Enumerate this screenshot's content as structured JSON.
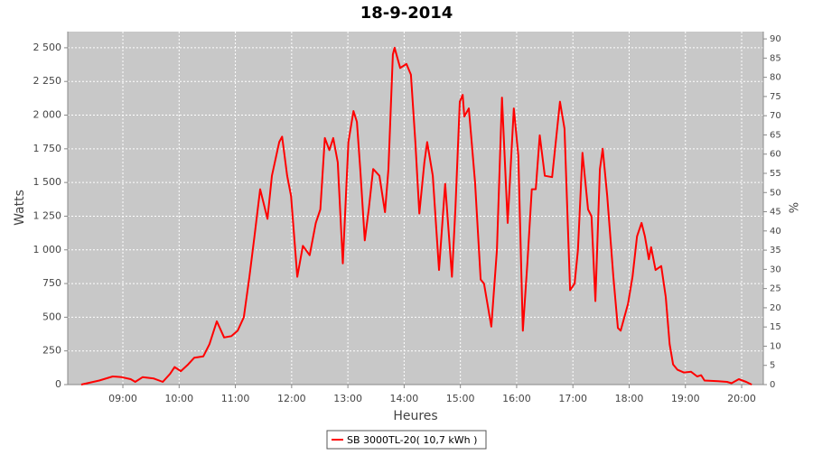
{
  "chart_data": {
    "type": "line",
    "title": "18-9-2014",
    "xlabel": "Heures",
    "ylabel": "Watts",
    "y2label": "%",
    "x": [
      8.26,
      8.58,
      8.82,
      8.98,
      9.14,
      9.22,
      9.35,
      9.55,
      9.71,
      9.84,
      9.92,
      10.03,
      10.16,
      10.27,
      10.43,
      10.54,
      10.67,
      10.8,
      10.93,
      11.04,
      11.15,
      11.25,
      11.34,
      11.44,
      11.57,
      11.65,
      11.78,
      11.83,
      11.92,
      11.99,
      12.1,
      12.2,
      12.32,
      12.43,
      12.51,
      12.59,
      12.67,
      12.74,
      12.82,
      12.91,
      13.01,
      13.1,
      13.16,
      13.22,
      13.3,
      13.37,
      13.45,
      13.56,
      13.66,
      13.72,
      13.8,
      13.83,
      13.93,
      14.04,
      14.12,
      14.2,
      14.27,
      14.36,
      14.41,
      14.51,
      14.62,
      14.68,
      14.73,
      14.85,
      14.91,
      14.99,
      15.04,
      15.07,
      15.15,
      15.26,
      15.36,
      15.42,
      15.55,
      15.65,
      15.74,
      15.84,
      15.95,
      16.03,
      16.11,
      16.19,
      16.27,
      16.34,
      16.41,
      16.5,
      16.63,
      16.77,
      16.85,
      16.95,
      17.03,
      17.09,
      17.17,
      17.27,
      17.33,
      17.4,
      17.48,
      17.53,
      17.61,
      17.72,
      17.8,
      17.85,
      17.98,
      18.06,
      18.14,
      18.22,
      18.28,
      18.35,
      18.39,
      18.47,
      18.57,
      18.65,
      18.72,
      18.78,
      18.86,
      18.97,
      19.1,
      19.21,
      19.28,
      19.34,
      19.58,
      19.74,
      19.82,
      19.95,
      20.08,
      20.18
    ],
    "series": [
      {
        "name": "SB 3000TL-20( 10,7 kWh )",
        "color": "#ff0000",
        "values": [
          0,
          30,
          60,
          55,
          40,
          20,
          55,
          45,
          20,
          80,
          130,
          100,
          150,
          200,
          210,
          300,
          470,
          350,
          360,
          400,
          500,
          800,
          1100,
          1450,
          1230,
          1550,
          1800,
          1840,
          1550,
          1400,
          800,
          1030,
          960,
          1200,
          1300,
          1830,
          1740,
          1830,
          1650,
          900,
          1800,
          2030,
          1950,
          1600,
          1070,
          1300,
          1600,
          1550,
          1280,
          1600,
          2450,
          2500,
          2350,
          2380,
          2300,
          1800,
          1270,
          1650,
          1800,
          1550,
          850,
          1200,
          1490,
          800,
          1300,
          2100,
          2150,
          1990,
          2050,
          1500,
          780,
          750,
          430,
          1000,
          2130,
          1200,
          2050,
          1700,
          400,
          900,
          1450,
          1450,
          1850,
          1550,
          1540,
          2100,
          1900,
          700,
          750,
          1000,
          1720,
          1300,
          1250,
          620,
          1600,
          1750,
          1400,
          800,
          420,
          400,
          600,
          800,
          1100,
          1200,
          1100,
          930,
          1020,
          850,
          880,
          650,
          300,
          150,
          110,
          90,
          95,
          60,
          70,
          30,
          25,
          20,
          10,
          40,
          20,
          0
        ]
      }
    ],
    "xlim": [
      8.02,
      20.385
    ],
    "xticks": [
      {
        "value": 9,
        "label": "09:00"
      },
      {
        "value": 10,
        "label": "10:00"
      },
      {
        "value": 11,
        "label": "11:00"
      },
      {
        "value": 12,
        "label": "12:00"
      },
      {
        "value": 13,
        "label": "13:00"
      },
      {
        "value": 14,
        "label": "14:00"
      },
      {
        "value": 15,
        "label": "15:00"
      },
      {
        "value": 16,
        "label": "16:00"
      },
      {
        "value": 17,
        "label": "17:00"
      },
      {
        "value": 18,
        "label": "18:00"
      },
      {
        "value": 19,
        "label": "19:00"
      },
      {
        "value": 20,
        "label": "20:00"
      }
    ],
    "ylim": [
      0,
      2620
    ],
    "yticks": [
      0,
      250,
      500,
      750,
      {
        "value": 1000,
        "label": "1 000"
      },
      {
        "value": 1250,
        "label": "1 250"
      },
      {
        "value": 1500,
        "label": "1 500"
      },
      {
        "value": 1750,
        "label": "1 750"
      },
      {
        "value": 2000,
        "label": "2 000"
      },
      {
        "value": 2250,
        "label": "2 250"
      },
      {
        "value": 2500,
        "label": "2 500"
      }
    ],
    "y2lim": [
      0,
      91.9
    ],
    "y2ticks": [
      0,
      5,
      10,
      15,
      20,
      25,
      30,
      35,
      40,
      45,
      50,
      55,
      60,
      65,
      70,
      75,
      80,
      85,
      90
    ],
    "grid": true,
    "legend": "bottom"
  }
}
